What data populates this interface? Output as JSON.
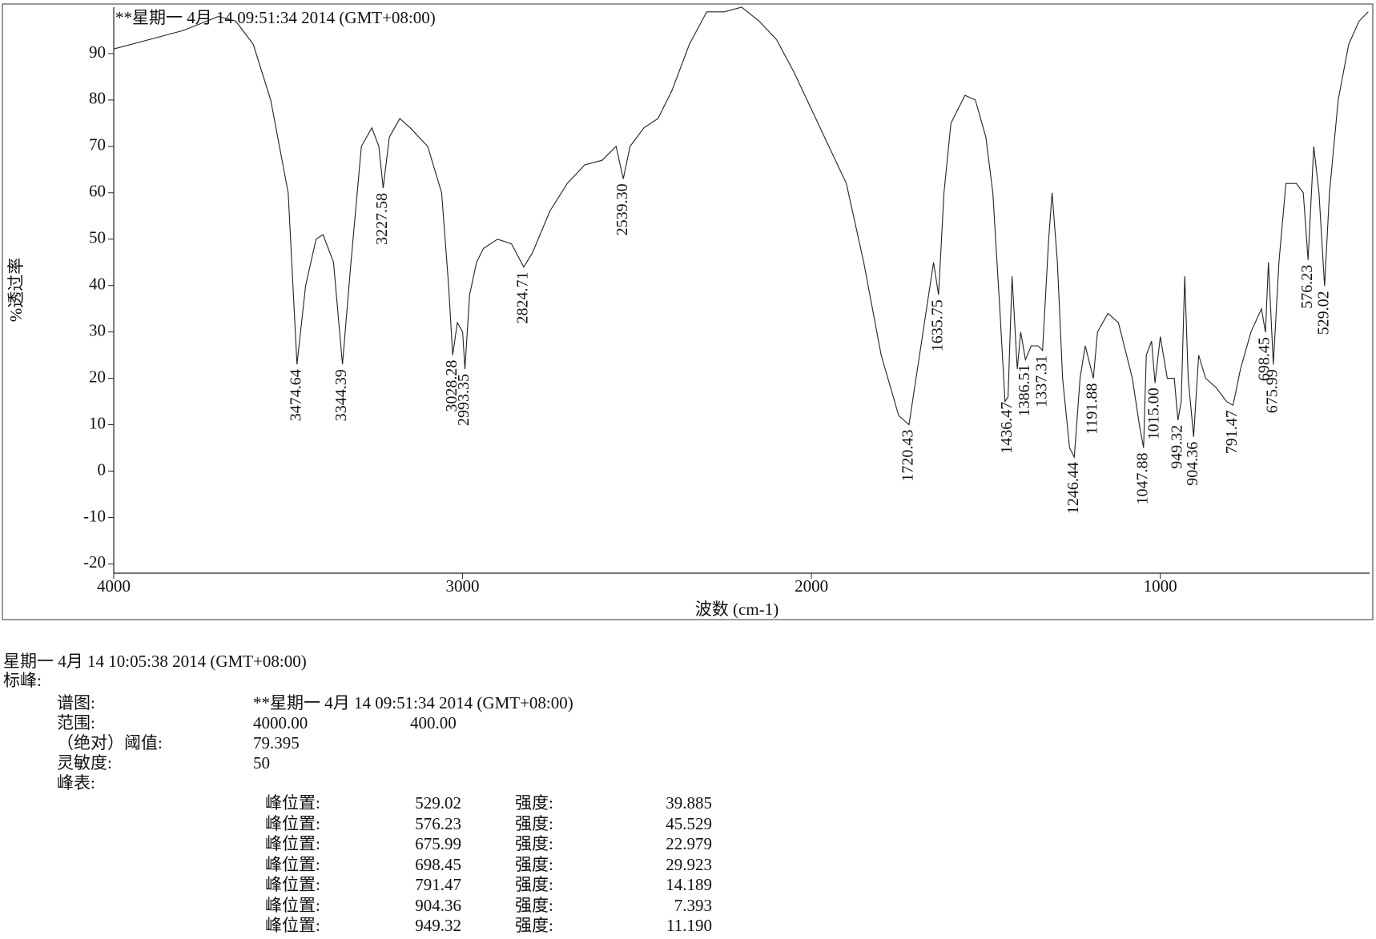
{
  "chart_data": {
    "type": "line",
    "title": "**星期一 4月 14 09:51:34 2014 (GMT+08:00)",
    "x_label": "波数 (cm-1)",
    "y_label": "%透过率",
    "xlim": [
      4000,
      400
    ],
    "xticks": [
      4000,
      3000,
      2000,
      1000
    ],
    "ylim": [
      -22,
      100
    ],
    "yticks": [
      -20,
      -10,
      0,
      10,
      20,
      30,
      40,
      50,
      60,
      70,
      80,
      90
    ],
    "color": "#222",
    "x": [
      4000,
      3900,
      3800,
      3700,
      3650,
      3600,
      3550,
      3500,
      3474.64,
      3450,
      3420,
      3400,
      3370,
      3344.39,
      3320,
      3290,
      3260,
      3240,
      3227.58,
      3210,
      3180,
      3150,
      3100,
      3060,
      3040,
      3028.28,
      3015,
      3000,
      2993.35,
      2980,
      2960,
      2940,
      2900,
      2860,
      2824.71,
      2800,
      2750,
      2700,
      2650,
      2600,
      2560,
      2539.3,
      2520,
      2480,
      2440,
      2400,
      2350,
      2300,
      2250,
      2200,
      2150,
      2100,
      2050,
      2000,
      1950,
      1900,
      1850,
      1800,
      1750,
      1720.43,
      1690,
      1660,
      1650,
      1635.75,
      1620,
      1600,
      1560,
      1530,
      1500,
      1480,
      1460,
      1445,
      1436.47,
      1425,
      1410,
      1400,
      1386.51,
      1370,
      1350,
      1337.31,
      1320,
      1310,
      1295,
      1280,
      1260,
      1246.44,
      1230,
      1215,
      1191.88,
      1180,
      1150,
      1120,
      1080,
      1060,
      1047.88,
      1040,
      1025,
      1015,
      1000,
      980,
      960,
      949.32,
      940,
      930,
      920,
      904.36,
      890,
      870,
      840,
      810,
      791.47,
      770,
      740,
      710,
      698.45,
      690,
      675.99,
      660,
      640,
      610,
      590,
      576.23,
      560,
      545,
      529.02,
      515,
      490,
      460,
      430,
      404
    ],
    "values": [
      91,
      93,
      95,
      98,
      97,
      92,
      80,
      60,
      23,
      40,
      50,
      51,
      45,
      23,
      45,
      70,
      74,
      70,
      61,
      72,
      76,
      74,
      70,
      60,
      40,
      25,
      32,
      30,
      22,
      38,
      45,
      48,
      50,
      49,
      44,
      47,
      56,
      62,
      66,
      67,
      70,
      63,
      70,
      74,
      76,
      82,
      92,
      99,
      99,
      100,
      97,
      93,
      86,
      78,
      70,
      62,
      45,
      25,
      12,
      10,
      25,
      40,
      45,
      38,
      60,
      75,
      81,
      80,
      72,
      60,
      35,
      15,
      16,
      42,
      22,
      30,
      24,
      27,
      27,
      26,
      50,
      60,
      45,
      20,
      5,
      3,
      20,
      27,
      20,
      30,
      34,
      32,
      20,
      10,
      5,
      25,
      28,
      19,
      29,
      20,
      20,
      11,
      15,
      42,
      20,
      7.393,
      25,
      20,
      18,
      15,
      14.189,
      22,
      30,
      35,
      29.923,
      45,
      22.979,
      45,
      62,
      62,
      60,
      45.529,
      70,
      60,
      39.885,
      60,
      80,
      92,
      97,
      99
    ],
    "peaks": [
      3474.64,
      3344.39,
      3227.58,
      3028.28,
      2993.35,
      2824.71,
      {
        "value": 2539.3,
        "label": "2539.30"
      },
      1720.43,
      1635.75,
      1436.47,
      1386.51,
      1337.31,
      1246.44,
      1191.88,
      1047.88,
      {
        "value": 1015,
        "label": "1015.00"
      },
      949.32,
      904.36,
      791.47,
      698.45,
      675.99,
      576.23,
      529.02
    ]
  },
  "doc": {
    "header": "星期一 4月 14 10:05:38 2014 (GMT+08:00)",
    "section": "标峰:",
    "rows": [
      [
        "谱图:",
        "**星期一 4月 14 09:51:34 2014 (GMT+08:00)"
      ],
      [
        "范围:",
        "4000.00",
        "400.00"
      ],
      [
        "（绝对）阈值:",
        "79.395"
      ],
      [
        "灵敏度:",
        "50"
      ],
      [
        "峰表:"
      ]
    ],
    "table": [
      [
        "峰位置:",
        "529.02",
        "强度:",
        "39.885"
      ],
      [
        "峰位置:",
        "576.23",
        "强度:",
        "45.529"
      ],
      [
        "峰位置:",
        "675.99",
        "强度:",
        "22.979"
      ],
      [
        "峰位置:",
        "698.45",
        "强度:",
        "29.923"
      ],
      [
        "峰位置:",
        "791.47",
        "强度:",
        "14.189"
      ],
      [
        "峰位置:",
        "904.36",
        "强度:",
        "7.393"
      ],
      [
        "峰位置:",
        "949.32",
        "强度:",
        "11.190"
      ]
    ]
  }
}
